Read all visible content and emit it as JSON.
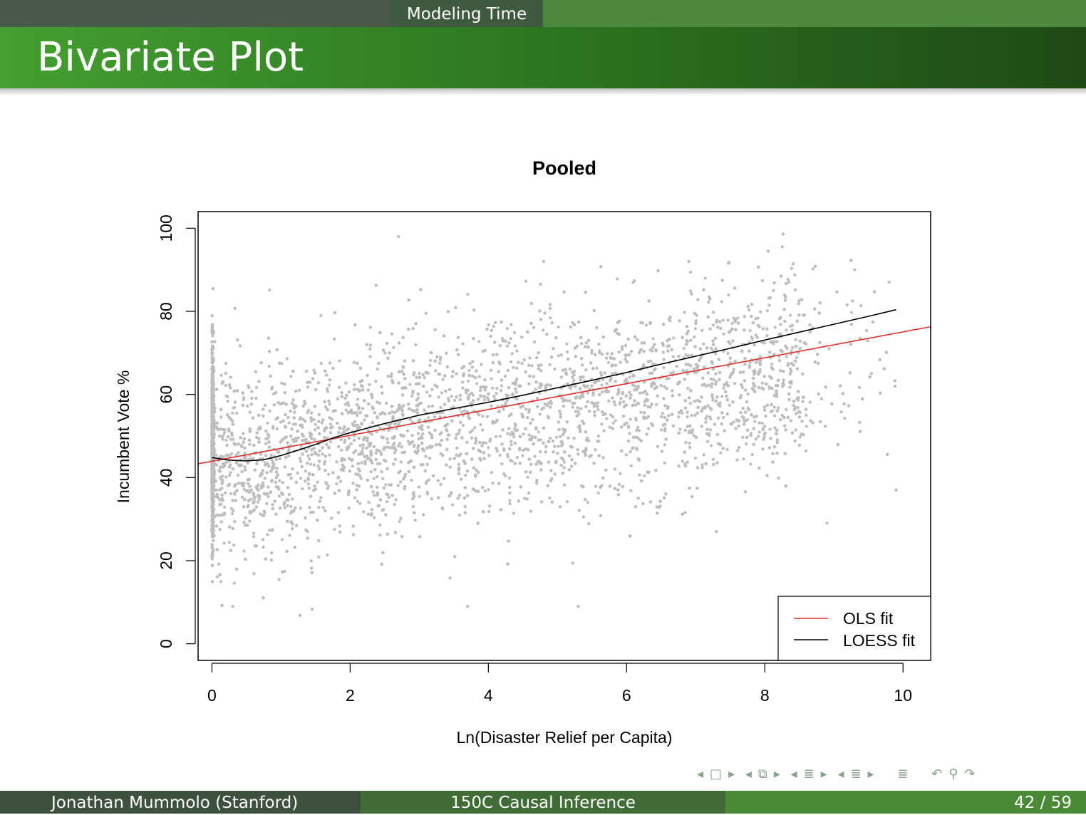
{
  "header": {
    "section": "Modeling Time",
    "title": "Bivariate Plot"
  },
  "footer": {
    "author": "Jonathan Mummolo  (Stanford)",
    "course": "150C Causal Inference",
    "page": "42 / 59"
  },
  "nav_icons": [
    "arrow-left-icon",
    "frame-icon",
    "arrow-right-icon",
    "arrow-left-icon",
    "subsection-icon",
    "arrow-right-icon",
    "arrow-left-icon",
    "section-icon",
    "arrow-right-icon",
    "arrow-left-icon",
    "section-icon",
    "arrow-right-icon",
    "align-icon",
    "undo-icon",
    "search-icon",
    "redo-icon"
  ],
  "chart_data": {
    "type": "scatter",
    "title": "Pooled",
    "xlabel": "Ln(Disaster Relief per Capita)",
    "ylabel": "Incumbent Vote %",
    "xlim": [
      -0.2,
      10.4
    ],
    "ylim": [
      -4,
      104
    ],
    "x_ticks": [
      0,
      2,
      4,
      6,
      8,
      10
    ],
    "y_ticks": [
      0,
      20,
      40,
      60,
      80,
      100
    ],
    "point_color": "#bebebe",
    "point_count_estimate": 9000,
    "points_description_sample": [
      {
        "x": 2.7,
        "y": 98
      },
      {
        "x": 4.8,
        "y": 92
      },
      {
        "x": 6.9,
        "y": 92
      },
      {
        "x": 9.3,
        "y": 90
      },
      {
        "x": 9.9,
        "y": 37
      },
      {
        "x": 8.9,
        "y": 29
      },
      {
        "x": 7.3,
        "y": 27
      },
      {
        "x": 0.3,
        "y": 9
      },
      {
        "x": 3.7,
        "y": 9
      },
      {
        "x": 5.3,
        "y": 9
      }
    ],
    "series": [
      {
        "name": "OLS fit",
        "color": "#e0302a",
        "type": "line",
        "x": [
          -0.2,
          10.4
        ],
        "y": [
          43.3,
          76.3
        ]
      },
      {
        "name": "LOESS fit",
        "color": "#000000",
        "type": "line",
        "x": [
          0,
          0.25,
          0.5,
          0.75,
          1.0,
          1.25,
          1.5,
          1.75,
          2.0,
          2.5,
          3.0,
          3.5,
          4.0,
          4.5,
          5.0,
          5.5,
          6.0,
          6.5,
          7.0,
          7.5,
          8.0,
          8.5,
          9.0,
          9.5,
          9.9
        ],
        "y": [
          44.8,
          44.2,
          44.0,
          44.3,
          45.3,
          46.6,
          48.0,
          49.5,
          50.8,
          53.0,
          55.0,
          56.6,
          58.1,
          59.8,
          61.6,
          63.4,
          65.3,
          67.3,
          69.2,
          71.1,
          73.1,
          75.0,
          76.9,
          78.8,
          80.4
        ]
      }
    ],
    "legend": {
      "position": "bottom-right",
      "entries": [
        {
          "label": "OLS fit",
          "color": "#e0302a"
        },
        {
          "label": "LOESS fit",
          "color": "#000000"
        }
      ]
    }
  }
}
